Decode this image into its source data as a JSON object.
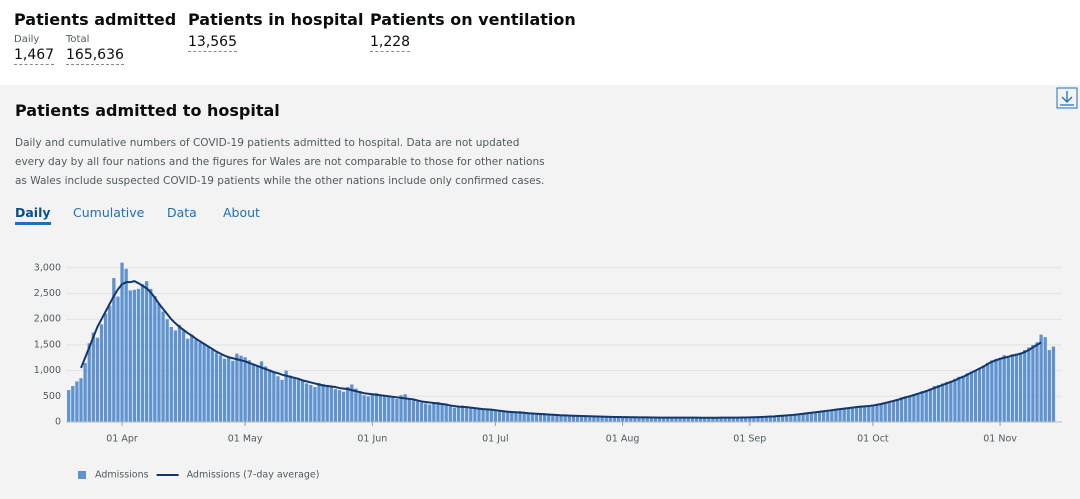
{
  "headline": {
    "items": [
      {
        "title": "Patients admitted",
        "stats": [
          {
            "label": "Daily",
            "value": "1,467"
          },
          {
            "label": "Total",
            "value": "165,636"
          }
        ]
      },
      {
        "title": "Patients in hospital",
        "stats": [
          {
            "value": "13,565"
          }
        ]
      },
      {
        "title": "Patients on ventilation",
        "stats": [
          {
            "value": "1,228"
          }
        ]
      }
    ]
  },
  "card": {
    "title": "Patients admitted to hospital",
    "description": "Daily and cumulative numbers of COVID-19 patients admitted to hospital. Data are not updated every day by all four nations and the figures for Wales are not comparable to those for other nations as Wales include suspected COVID-19 patients while the other nations include only confirmed cases.",
    "tabs": [
      "Daily",
      "Cumulative",
      "Data",
      "About"
    ],
    "active_tab": 0
  },
  "chart_data": {
    "type": "bar_line",
    "grid": true,
    "categories": [
      null,
      null,
      null,
      null,
      null,
      null,
      null,
      null,
      null,
      null,
      null,
      null,
      null,
      "01 Apr",
      null,
      null,
      null,
      null,
      null,
      null,
      null,
      null,
      null,
      null,
      null,
      null,
      null,
      null,
      null,
      null,
      null,
      null,
      null,
      null,
      null,
      null,
      null,
      null,
      null,
      null,
      null,
      null,
      null,
      "01 May",
      null,
      null,
      null,
      null,
      null,
      null,
      null,
      null,
      null,
      null,
      null,
      null,
      null,
      null,
      null,
      null,
      null,
      null,
      null,
      null,
      null,
      null,
      null,
      null,
      null,
      null,
      null,
      null,
      null,
      null,
      "01 Jun",
      null,
      null,
      null,
      null,
      null,
      null,
      null,
      null,
      null,
      null,
      null,
      null,
      null,
      null,
      null,
      null,
      null,
      null,
      null,
      null,
      null,
      null,
      null,
      null,
      null,
      null,
      null,
      null,
      null,
      "01 Jul",
      null,
      null,
      null,
      null,
      null,
      null,
      null,
      null,
      null,
      null,
      null,
      null,
      null,
      null,
      null,
      null,
      null,
      null,
      null,
      null,
      null,
      null,
      null,
      null,
      null,
      null,
      null,
      null,
      null,
      null,
      "01 Aug",
      null,
      null,
      null,
      null,
      null,
      null,
      null,
      null,
      null,
      null,
      null,
      null,
      null,
      null,
      null,
      null,
      null,
      null,
      null,
      null,
      null,
      null,
      null,
      null,
      null,
      null,
      null,
      null,
      null,
      null,
      "01 Sep",
      null,
      null,
      null,
      null,
      null,
      null,
      null,
      null,
      null,
      null,
      null,
      null,
      null,
      null,
      null,
      null,
      null,
      null,
      null,
      null,
      null,
      null,
      null,
      null,
      null,
      null,
      null,
      null,
      null,
      "01 Oct",
      null,
      null,
      null,
      null,
      null,
      null,
      null,
      null,
      null,
      null,
      null,
      null,
      null,
      null,
      null,
      null,
      null,
      null,
      null,
      null,
      null,
      null,
      null,
      null,
      null,
      null,
      null,
      null,
      null,
      null,
      "01 Nov",
      null,
      null,
      null,
      null,
      null,
      null,
      null,
      null,
      null,
      null,
      null,
      null,
      null
    ],
    "series": [
      {
        "name": "Admissions",
        "kind": "bar",
        "color": "#5f93cf",
        "values": [
          620,
          700,
          790,
          850,
          1150,
          1530,
          1740,
          1640,
          1900,
          2110,
          2260,
          2800,
          2440,
          3100,
          2980,
          2560,
          2570,
          2590,
          2680,
          2740,
          2590,
          2450,
          2300,
          2150,
          2000,
          1850,
          1780,
          1890,
          1780,
          1620,
          1700,
          1600,
          1550,
          1520,
          1480,
          1400,
          1350,
          1300,
          1230,
          1250,
          1190,
          1330,
          1290,
          1260,
          1200,
          1130,
          1090,
          1180,
          1080,
          1020,
          960,
          890,
          820,
          1000,
          900,
          870,
          850,
          820,
          750,
          720,
          680,
          760,
          740,
          720,
          700,
          640,
          620,
          590,
          680,
          730,
          650,
          600,
          520,
          500,
          540,
          560,
          530,
          520,
          500,
          480,
          450,
          520,
          540,
          440,
          420,
          400,
          380,
          360,
          340,
          370,
          390,
          360,
          330,
          300,
          280,
          290,
          320,
          300,
          290,
          270,
          250,
          240,
          260,
          250,
          230,
          220,
          200,
          190,
          180,
          200,
          210,
          190,
          170,
          160,
          150,
          160,
          170,
          150,
          140,
          130,
          130,
          140,
          120,
          110,
          120,
          130,
          120,
          110,
          100,
          100,
          110,
          110,
          100,
          100,
          95,
          90,
          85,
          95,
          100,
          95,
          90,
          85,
          80,
          80,
          90,
          95,
          90,
          85,
          85,
          80,
          80,
          85,
          90,
          90,
          85,
          80,
          80,
          85,
          90,
          90,
          85,
          80,
          75,
          80,
          85,
          90,
          90,
          95,
          100,
          95,
          90,
          100,
          110,
          115,
          120,
          130,
          135,
          150,
          160,
          170,
          180,
          190,
          200,
          210,
          220,
          230,
          240,
          250,
          260,
          270,
          280,
          290,
          300,
          310,
          300,
          310,
          320,
          340,
          360,
          380,
          400,
          420,
          450,
          480,
          500,
          520,
          540,
          560,
          600,
          620,
          650,
          700,
          720,
          750,
          780,
          800,
          840,
          880,
          900,
          950,
          980,
          1000,
          1050,
          1100,
          1150,
          1200,
          1230,
          1250,
          1300,
          1280,
          1320,
          1330,
          1350,
          1400,
          1450,
          1500,
          1550,
          1700,
          1650,
          1400,
          1467
        ]
      },
      {
        "name": "Admissions (7-day average)",
        "kind": "line",
        "color": "#13366b",
        "values": [
          null,
          null,
          null,
          1050,
          1250,
          1450,
          1650,
          1850,
          2000,
          2150,
          2300,
          2450,
          2580,
          2680,
          2720,
          2720,
          2740,
          2700,
          2650,
          2600,
          2520,
          2420,
          2300,
          2200,
          2100,
          2000,
          1920,
          1850,
          1790,
          1730,
          1680,
          1620,
          1570,
          1520,
          1470,
          1420,
          1370,
          1330,
          1290,
          1260,
          1240,
          1220,
          1200,
          1180,
          1150,
          1120,
          1090,
          1060,
          1030,
          1000,
          970,
          950,
          920,
          900,
          880,
          860,
          840,
          810,
          790,
          770,
          750,
          730,
          710,
          700,
          690,
          680,
          660,
          650,
          640,
          620,
          600,
          580,
          560,
          550,
          540,
          530,
          520,
          510,
          500,
          490,
          480,
          470,
          460,
          450,
          440,
          420,
          400,
          390,
          380,
          370,
          360,
          350,
          340,
          320,
          310,
          300,
          295,
          290,
          280,
          270,
          260,
          250,
          245,
          240,
          230,
          220,
          210,
          200,
          195,
          190,
          185,
          180,
          170,
          165,
          160,
          155,
          150,
          145,
          140,
          135,
          130,
          128,
          125,
          122,
          120,
          117,
          115,
          112,
          110,
          108,
          105,
          103,
          100,
          98,
          96,
          95,
          94,
          93,
          92,
          91,
          90,
          89,
          88,
          87,
          86,
          86,
          86,
          85,
          85,
          85,
          84,
          84,
          84,
          84,
          83,
          83,
          83,
          83,
          83,
          84,
          84,
          84,
          85,
          86,
          87,
          88,
          90,
          92,
          95,
          98,
          102,
          106,
          110,
          116,
          122,
          128,
          135,
          142,
          150,
          160,
          170,
          180,
          190,
          200,
          210,
          220,
          230,
          240,
          250,
          260,
          270,
          280,
          290,
          300,
          305,
          310,
          320,
          335,
          350,
          370,
          390,
          410,
          430,
          455,
          480,
          500,
          525,
          550,
          575,
          600,
          630,
          660,
          690,
          720,
          750,
          780,
          810,
          850,
          880,
          920,
          960,
          1000,
          1040,
          1080,
          1130,
          1170,
          1200,
          1230,
          1250,
          1270,
          1290,
          1310,
          1330,
          1360,
          1400,
          1450,
          1500,
          1550,
          null,
          null,
          null
        ]
      }
    ],
    "ylim": [
      0,
      3200
    ],
    "yticks": [
      0,
      500,
      {
        "value": 1000,
        "label": "1,000"
      },
      {
        "value": 1500,
        "label": "1,500"
      },
      {
        "value": 2000,
        "label": "2,000"
      },
      {
        "value": 2500,
        "label": "2,500"
      },
      {
        "value": 3000,
        "label": "3,000"
      }
    ]
  }
}
